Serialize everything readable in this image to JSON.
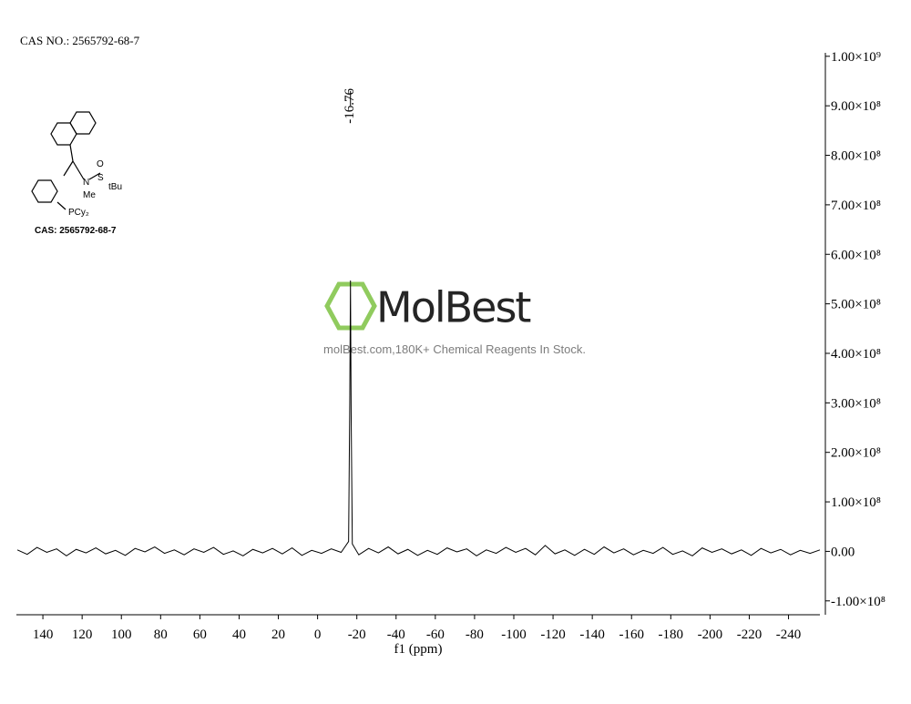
{
  "chart_data": {
    "type": "line",
    "title": "CAS NO.: 2565792-68-7",
    "x_label": "f1 (ppm)",
    "peak_labels": [
      -16.76
    ],
    "watermark": "MolBest",
    "watermark_caption": "molBest.com,180K+ Chemical Reagents In Stock.",
    "structure": {
      "caption": "CAS: 2565792-68-7",
      "atoms": [
        "O",
        "S",
        "tBu",
        "N",
        "Me",
        "PCy₂"
      ]
    },
    "xlim": [
      153.5,
      -256
    ],
    "xticks": [
      140,
      120,
      100,
      80,
      60,
      40,
      20,
      0,
      -20,
      -40,
      -60,
      -80,
      -100,
      -120,
      -140,
      -160,
      -180,
      -200,
      -220,
      -240
    ],
    "ylim": [
      -128000000,
      1007000000
    ],
    "yticks": [
      {
        "value": -100000000,
        "label": "-1.00×10⁸"
      },
      {
        "value": 0,
        "label": "0.00"
      },
      {
        "value": 100000000,
        "label": "1.00×10⁸"
      },
      {
        "value": 200000000,
        "label": "2.00×10⁸"
      },
      {
        "value": 300000000,
        "label": "3.00×10⁸"
      },
      {
        "value": 400000000,
        "label": "4.00×10⁸"
      },
      {
        "value": 500000000,
        "label": "5.00×10⁸"
      },
      {
        "value": 600000000,
        "label": "6.00×10⁸"
      },
      {
        "value": 700000000,
        "label": "7.00×10⁸"
      },
      {
        "value": 800000000,
        "label": "8.00×10⁸"
      },
      {
        "value": 900000000,
        "label": "9.00×10⁸"
      },
      {
        "value": 1000000000,
        "label": "1.00×10⁹"
      }
    ],
    "x": [
      153,
      148,
      143,
      138,
      133,
      128,
      123,
      118,
      113,
      108,
      103,
      98,
      93,
      88,
      83,
      78,
      73,
      68,
      63,
      58,
      53,
      48,
      43,
      38,
      33,
      28,
      23,
      18,
      13,
      8,
      3,
      -2,
      -7,
      -12,
      -15.8,
      -16.4,
      -16.76,
      -17.1,
      -17.7,
      -21,
      -26,
      -31,
      -36,
      -41,
      -46,
      -51,
      -56,
      -61,
      -66,
      -71,
      -76,
      -81,
      -86,
      -91,
      -96,
      -101,
      -106,
      -111,
      -116,
      -121,
      -126,
      -131,
      -136,
      -141,
      -146,
      -151,
      -156,
      -161,
      -166,
      -171,
      -176,
      -181,
      -186,
      -191,
      -196,
      -201,
      -206,
      -211,
      -216,
      -221,
      -226,
      -231,
      -236,
      -241,
      -246,
      -251,
      -256
    ],
    "series": [
      {
        "color": "#000000",
        "values": [
          3000000,
          -6000000,
          8000000,
          -2000000,
          5000000,
          -9000000,
          4000000,
          -3000000,
          7000000,
          -5000000,
          2000000,
          -8000000,
          6000000,
          -1000000,
          9000000,
          -4000000,
          3000000,
          -7000000,
          5000000,
          -2000000,
          8000000,
          -6000000,
          1000000,
          -9000000,
          4000000,
          -3000000,
          6000000,
          -5000000,
          7000000,
          -8000000,
          2000000,
          -4000000,
          5000000,
          -2000000,
          20000000,
          300000000,
          547000000,
          280000000,
          15000000,
          -7000000,
          6000000,
          -3000000,
          9000000,
          -5000000,
          4000000,
          -8000000,
          2000000,
          -6000000,
          7000000,
          -1000000,
          5000000,
          -9000000,
          3000000,
          -4000000,
          8000000,
          -2000000,
          6000000,
          -7000000,
          12000000,
          -5000000,
          3000000,
          -8000000,
          4000000,
          -6000000,
          9000000,
          -3000000,
          5000000,
          -7000000,
          2000000,
          -4000000,
          8000000,
          -6000000,
          1000000,
          -9000000,
          7000000,
          -2000000,
          5000000,
          -5000000,
          3000000,
          -8000000,
          6000000,
          -3000000,
          4000000,
          -7000000,
          2000000,
          -4000000,
          3000000
        ]
      }
    ]
  }
}
